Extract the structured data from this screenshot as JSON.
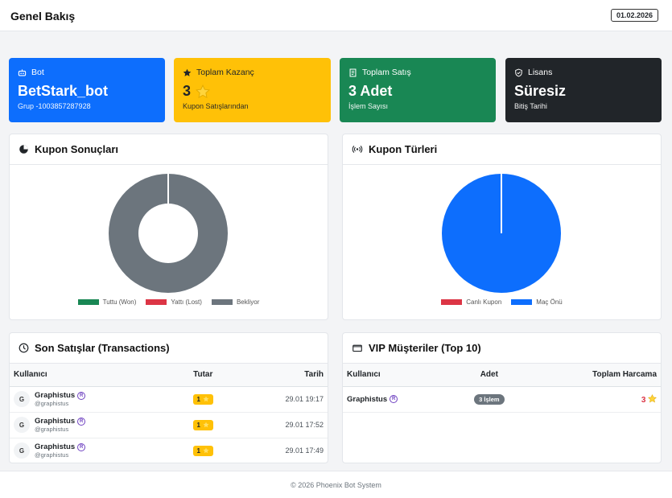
{
  "header": {
    "title": "Genel Bakış",
    "date": "01.02.2026"
  },
  "stats": {
    "bot": {
      "label": "Bot",
      "value": "BetStark_bot",
      "sub": "Grup -1003857287928"
    },
    "earnings": {
      "label": "Toplam Kazanç",
      "value": "3",
      "sub": "Kupon Satışlarından"
    },
    "sales": {
      "label": "Toplam Satış",
      "value": "3 Adet",
      "sub": "İşlem Sayısı"
    },
    "license": {
      "label": "Lisans",
      "value": "Süresiz",
      "sub": "Bitiş Tarihi"
    }
  },
  "coupon_results": {
    "title": "Kupon Sonuçları",
    "legend": [
      "Tuttu (Won)",
      "Yattı (Lost)",
      "Bekliyor"
    ],
    "colors": [
      "#198754",
      "#dc3545",
      "#6c757d"
    ],
    "values": [
      0,
      0,
      3
    ]
  },
  "coupon_types": {
    "title": "Kupon Türleri",
    "legend": [
      "Canlı Kupon",
      "Maç Önü"
    ],
    "colors": [
      "#dc3545",
      "#0d6efd"
    ],
    "values": [
      0,
      3
    ]
  },
  "transactions": {
    "title": "Son Satışlar (Transactions)",
    "columns": [
      "Kullanıcı",
      "Tutar",
      "Tarih"
    ],
    "rows": [
      {
        "avatar": "G",
        "name": "Graphistus",
        "handle": "@graphistus",
        "amount": "1",
        "date": "29.01 19:17"
      },
      {
        "avatar": "G",
        "name": "Graphistus",
        "handle": "@graphistus",
        "amount": "1",
        "date": "29.01 17:52"
      },
      {
        "avatar": "G",
        "name": "Graphistus",
        "handle": "@graphistus",
        "amount": "1",
        "date": "29.01 17:49"
      }
    ]
  },
  "vip": {
    "title": "VIP Müşteriler (Top 10)",
    "columns": [
      "Kullanıcı",
      "Adet",
      "Toplam Harcama"
    ],
    "rows": [
      {
        "name": "Graphistus",
        "count": "3 İşlem",
        "spend": "3"
      }
    ]
  },
  "footer": {
    "text": "© 2026 Phoenix Bot System"
  }
}
